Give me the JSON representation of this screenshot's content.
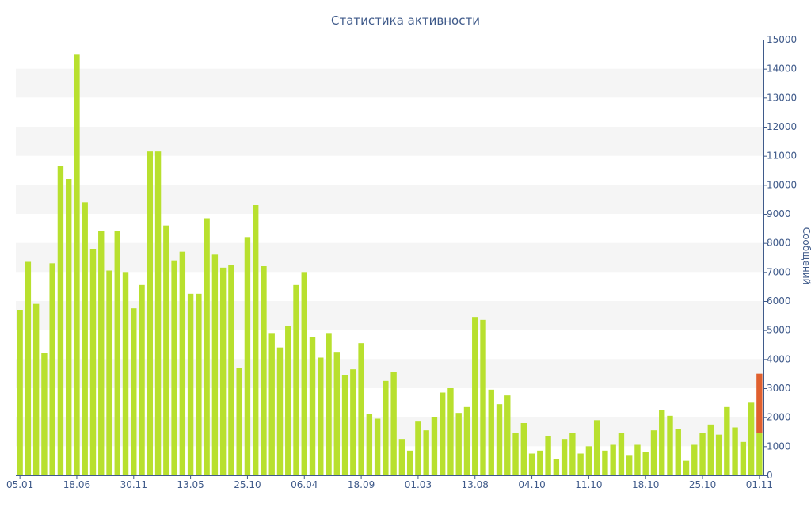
{
  "chart_data": {
    "type": "bar",
    "title": "Статистика активности",
    "xlabel": "",
    "ylabel": "Сообщений",
    "ylim": [
      0,
      15000
    ],
    "y_axis_side": "right",
    "y_ticks": [
      0,
      1000,
      2000,
      3000,
      4000,
      5000,
      6000,
      7000,
      8000,
      9000,
      10000,
      11000,
      12000,
      13000,
      14000,
      15000
    ],
    "x_tick_labels": [
      {
        "label": "05.01",
        "index": 0
      },
      {
        "label": "18.06",
        "index": 7
      },
      {
        "label": "30.11",
        "index": 14
      },
      {
        "label": "13.05",
        "index": 21
      },
      {
        "label": "25.10",
        "index": 28
      },
      {
        "label": "06.04",
        "index": 35
      },
      {
        "label": "18.09",
        "index": 42
      },
      {
        "label": "01.03",
        "index": 49
      },
      {
        "label": "13.08",
        "index": 56
      },
      {
        "label": "04.10",
        "index": 63
      },
      {
        "label": "11.10",
        "index": 70
      },
      {
        "label": "18.10",
        "index": 77
      },
      {
        "label": "25.10",
        "index": 84
      },
      {
        "label": "01.11",
        "index": 91
      }
    ],
    "grid": true,
    "band_color": "#f5f5f5",
    "colors": {
      "bar": "#b8e02e",
      "highlight": "#e0602e",
      "axis": "#3f5a8a",
      "text": "#3f5a8a"
    },
    "values": [
      5700,
      7350,
      5900,
      4200,
      7300,
      10650,
      10200,
      14500,
      9400,
      7800,
      8400,
      7050,
      8400,
      7000,
      5750,
      6550,
      11150,
      11150,
      8600,
      7400,
      7700,
      6250,
      6250,
      8850,
      7600,
      7150,
      7250,
      3700,
      8200,
      9300,
      7200,
      4900,
      4400,
      5150,
      6550,
      7000,
      4750,
      4050,
      4900,
      4250,
      3450,
      3650,
      4550,
      2100,
      1950,
      3250,
      3550,
      1250,
      850,
      1850,
      1550,
      2000,
      2850,
      3000,
      2150,
      2350,
      5450,
      5350,
      2950,
      2450,
      2750,
      1450,
      1800,
      750,
      850,
      1350,
      550,
      1250,
      1450,
      750,
      1000,
      1900,
      850,
      1050,
      1450,
      700,
      1050,
      800,
      1550,
      2250,
      2050,
      1600,
      500,
      1050,
      1450,
      1750,
      1400,
      2350,
      1650,
      1150,
      2500,
      1450
    ],
    "last_bar_extra": 2050
  }
}
